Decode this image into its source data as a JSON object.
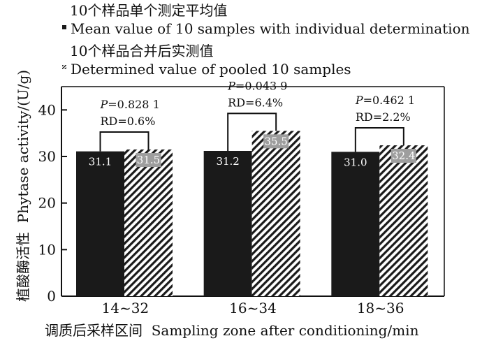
{
  "chart_data": {
    "type": "bar",
    "categories": [
      "14~32",
      "16~34",
      "18~36"
    ],
    "series": [
      {
        "name": "10个样品单个测定平均值 Mean value of 10 samples with individual determination",
        "name_cn": "10个样品单个测定平均值",
        "name_en": "Mean value of 10 samples with individual determination",
        "fill": "solid",
        "color": "#1a1a1a",
        "values": [
          31.1,
          31.2,
          31.0
        ]
      },
      {
        "name": "10个样品合并后实测值 Determined value of pooled 10 samples",
        "name_cn": "10个样品合并后实测值",
        "name_en": "Determined value of pooled 10 samples",
        "fill": "diagonal-hatch",
        "color": "#1a1a1a",
        "values": [
          31.5,
          35.5,
          32.4
        ]
      }
    ],
    "value_labels": [
      [
        "31.1",
        "31.5"
      ],
      [
        "31.2",
        "35.5"
      ],
      [
        "31.0",
        "32.4"
      ]
    ],
    "annotations": [
      {
        "p_label": "P",
        "p_value": "=0.828 1",
        "rd": "RD=0.6%"
      },
      {
        "p_label": "P",
        "p_value": "=0.043 9",
        "rd": "RD=6.4%"
      },
      {
        "p_label": "P",
        "p_value": "=0.462 1",
        "rd": "RD=2.2%"
      }
    ],
    "xlabel": "调质后采样区间  Sampling zone after conditioning/min",
    "ylabel": "植酸酶活性  Phytase activity/(U/g)",
    "ylim": [
      0,
      45
    ],
    "yticks": [
      0,
      10,
      20,
      30,
      40
    ],
    "grid": false,
    "legend_position": "top"
  }
}
